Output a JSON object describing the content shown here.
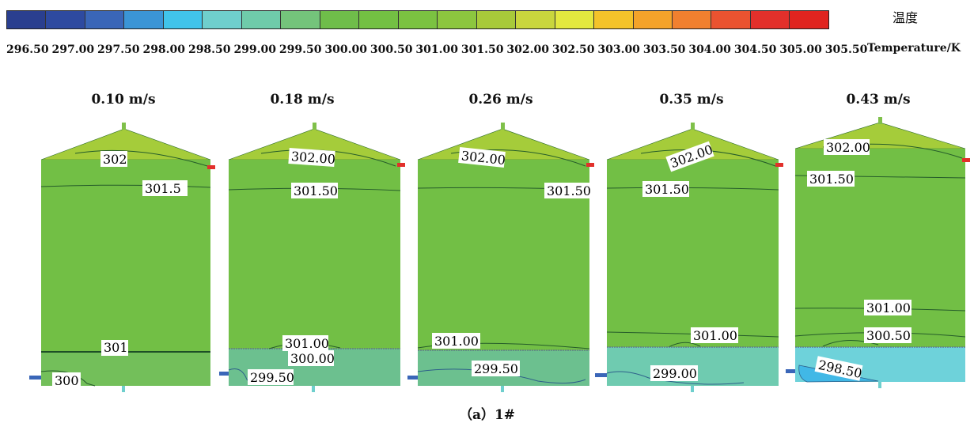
{
  "legend": {
    "title_zh": "温度",
    "title_en": "Temperature/K",
    "colors": [
      "#2a3f8f",
      "#2e4aa0",
      "#3a66b8",
      "#3b95d6",
      "#41c4ea",
      "#6fcfcd",
      "#6fcbaa",
      "#74c47b",
      "#6fbd4a",
      "#73c043",
      "#7bc241",
      "#8cc63f",
      "#a8ca3a",
      "#c9d63d",
      "#e3e83f",
      "#f3c32a",
      "#f4a32a",
      "#f1802f",
      "#ea5330",
      "#e2302b",
      "#e0241f"
    ],
    "ticks": [
      "296.50",
      "297.00",
      "297.50",
      "298.00",
      "298.50",
      "299.00",
      "299.50",
      "300.00",
      "300.50",
      "301.00",
      "301.50",
      "302.00",
      "302.50",
      "303.00",
      "303.50",
      "304.00",
      "304.50",
      "305.00",
      "305.50"
    ]
  },
  "tanks": [
    {
      "title": "0.10 m/s",
      "labels": [
        "302",
        "301.5",
        "301",
        "300"
      ],
      "colors": {
        "roof": "#a5cc3a",
        "upper": "#72bf45",
        "lower": "#73bf5a"
      }
    },
    {
      "title": "0.18 m/s",
      "labels": [
        "302.00",
        "301.50",
        "301.00",
        "300.00",
        "299.50"
      ],
      "colors": {
        "roof": "#a5cc3a",
        "upper": "#72bf45",
        "lower": "#6cc08f"
      }
    },
    {
      "title": "0.26 m/s",
      "labels": [
        "302.00",
        "301.50",
        "301.00",
        "299.50"
      ],
      "colors": {
        "roof": "#a5cc3a",
        "upper": "#72bf45",
        "lower": "#6cc08f"
      }
    },
    {
      "title": "0.35 m/s",
      "labels": [
        "302.00",
        "301.50",
        "301.00",
        "299.00"
      ],
      "colors": {
        "roof": "#a5cc3a",
        "upper": "#72bf45",
        "lower": "#6fcbb0"
      }
    },
    {
      "title": "0.43 m/s",
      "labels": [
        "302.00",
        "301.50",
        "301.00",
        "300.50",
        "298.50"
      ],
      "colors": {
        "roof": "#a5cc3a",
        "upper": "#72bf45",
        "lower": "#6ed2da"
      }
    }
  ],
  "caption": "（a）1#"
}
